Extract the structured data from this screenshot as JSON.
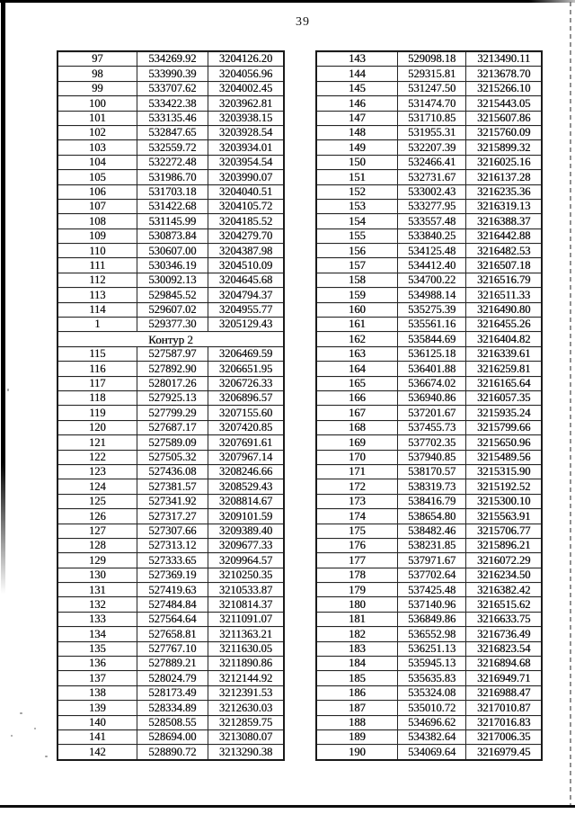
{
  "page": {
    "number": "39"
  },
  "colors": {
    "paper": "#ffffff",
    "ink": "#111111",
    "table_border": "#262626",
    "frame": "#000000"
  },
  "left_table": {
    "rows": [
      [
        "97",
        "534269.92",
        "3204126.20"
      ],
      [
        "98",
        "533990.39",
        "3204056.96"
      ],
      [
        "99",
        "533707.62",
        "3204002.45"
      ],
      [
        "100",
        "533422.38",
        "3203962.81"
      ],
      [
        "101",
        "533135.46",
        "3203938.15"
      ],
      [
        "102",
        "532847.65",
        "3203928.54"
      ],
      [
        "103",
        "532559.72",
        "3203934.01"
      ],
      [
        "104",
        "532272.48",
        "3203954.54"
      ],
      [
        "105",
        "531986.70",
        "3203990.07"
      ],
      [
        "106",
        "531703.18",
        "3204040.51"
      ],
      [
        "107",
        "531422.68",
        "3204105.72"
      ],
      [
        "108",
        "531145.99",
        "3204185.52"
      ],
      [
        "109",
        "530873.84",
        "3204279.70"
      ],
      [
        "110",
        "530607.00",
        "3204387.98"
      ],
      [
        "111",
        "530346.19",
        "3204510.09"
      ],
      [
        "112",
        "530092.13",
        "3204645.68"
      ],
      [
        "113",
        "529845.52",
        "3204794.37"
      ],
      [
        "114",
        "529607.02",
        "3204955.77"
      ],
      [
        "1",
        "529377.30",
        "3205129.43"
      ],
      {
        "section": "Контур 2"
      },
      [
        "115",
        "527587.97",
        "3206469.59"
      ],
      [
        "116",
        "527892.90",
        "3206651.95"
      ],
      [
        "117",
        "528017.26",
        "3206726.33"
      ],
      [
        "118",
        "527925.13",
        "3206896.57"
      ],
      [
        "119",
        "527799.29",
        "3207155.60"
      ],
      [
        "120",
        "527687.17",
        "3207420.85"
      ],
      [
        "121",
        "527589.09",
        "3207691.61"
      ],
      [
        "122",
        "527505.32",
        "3207967.14"
      ],
      [
        "123",
        "527436.08",
        "3208246.66"
      ],
      [
        "124",
        "527381.57",
        "3208529.43"
      ],
      [
        "125",
        "527341.92",
        "3208814.67"
      ],
      [
        "126",
        "527317.27",
        "3209101.59"
      ],
      [
        "127",
        "527307.66",
        "3209389.40"
      ],
      [
        "128",
        "527313.12",
        "3209677.33"
      ],
      [
        "129",
        "527333.65",
        "3209964.57"
      ],
      [
        "130",
        "527369.19",
        "3210250.35"
      ],
      [
        "131",
        "527419.63",
        "3210533.87"
      ],
      [
        "132",
        "527484.84",
        "3210814.37"
      ],
      [
        "133",
        "527564.64",
        "3211091.07"
      ],
      [
        "134",
        "527658.81",
        "3211363.21"
      ],
      [
        "135",
        "527767.10",
        "3211630.05"
      ],
      [
        "136",
        "527889.21",
        "3211890.86"
      ],
      [
        "137",
        "528024.79",
        "3212144.92"
      ],
      [
        "138",
        "528173.49",
        "3212391.53"
      ],
      [
        "139",
        "528334.89",
        "3212630.03"
      ],
      [
        "140",
        "528508.55",
        "3212859.75"
      ],
      [
        "141",
        "528694.00",
        "3213080.07"
      ],
      [
        "142",
        "528890.72",
        "3213290.38"
      ]
    ]
  },
  "right_table": {
    "rows": [
      [
        "143",
        "529098.18",
        "3213490.11"
      ],
      [
        "144",
        "529315.81",
        "3213678.70"
      ],
      [
        "145",
        "531247.50",
        "3215266.10"
      ],
      [
        "146",
        "531474.70",
        "3215443.05"
      ],
      [
        "147",
        "531710.85",
        "3215607.86"
      ],
      [
        "148",
        "531955.31",
        "3215760.09"
      ],
      [
        "149",
        "532207.39",
        "3215899.32"
      ],
      [
        "150",
        "532466.41",
        "3216025.16"
      ],
      [
        "151",
        "532731.67",
        "3216137.28"
      ],
      [
        "152",
        "533002.43",
        "3216235.36"
      ],
      [
        "153",
        "533277.95",
        "3216319.13"
      ],
      [
        "154",
        "533557.48",
        "3216388.37"
      ],
      [
        "155",
        "533840.25",
        "3216442.88"
      ],
      [
        "156",
        "534125.48",
        "3216482.53"
      ],
      [
        "157",
        "534412.40",
        "3216507.18"
      ],
      [
        "158",
        "534700.22",
        "3216516.79"
      ],
      [
        "159",
        "534988.14",
        "3216511.33"
      ],
      [
        "160",
        "535275.39",
        "3216490.80"
      ],
      [
        "161",
        "535561.16",
        "3216455.26"
      ],
      [
        "162",
        "535844.69",
        "3216404.82"
      ],
      [
        "163",
        "536125.18",
        "3216339.61"
      ],
      [
        "164",
        "536401.88",
        "3216259.81"
      ],
      [
        "165",
        "536674.02",
        "3216165.64"
      ],
      [
        "166",
        "536940.86",
        "3216057.35"
      ],
      [
        "167",
        "537201.67",
        "3215935.24"
      ],
      [
        "168",
        "537455.73",
        "3215799.66"
      ],
      [
        "169",
        "537702.35",
        "3215650.96"
      ],
      [
        "170",
        "537940.85",
        "3215489.56"
      ],
      [
        "171",
        "538170.57",
        "3215315.90"
      ],
      [
        "172",
        "538319.73",
        "3215192.52"
      ],
      [
        "173",
        "538416.79",
        "3215300.10"
      ],
      [
        "174",
        "538654.80",
        "3215563.91"
      ],
      [
        "175",
        "538482.46",
        "3215706.77"
      ],
      [
        "176",
        "538231.85",
        "3215896.21"
      ],
      [
        "177",
        "537971.67",
        "3216072.29"
      ],
      [
        "178",
        "537702.64",
        "3216234.50"
      ],
      [
        "179",
        "537425.48",
        "3216382.42"
      ],
      [
        "180",
        "537140.96",
        "3216515.62"
      ],
      [
        "181",
        "536849.86",
        "3216633.75"
      ],
      [
        "182",
        "536552.98",
        "3216736.49"
      ],
      [
        "183",
        "536251.13",
        "3216823.54"
      ],
      [
        "184",
        "535945.13",
        "3216894.68"
      ],
      [
        "185",
        "535635.83",
        "3216949.71"
      ],
      [
        "186",
        "535324.08",
        "3216988.47"
      ],
      [
        "187",
        "535010.72",
        "3217010.87"
      ],
      [
        "188",
        "534696.62",
        "3217016.83"
      ],
      [
        "189",
        "534382.64",
        "3217006.35"
      ],
      [
        "190",
        "534069.64",
        "3216979.45"
      ]
    ]
  }
}
